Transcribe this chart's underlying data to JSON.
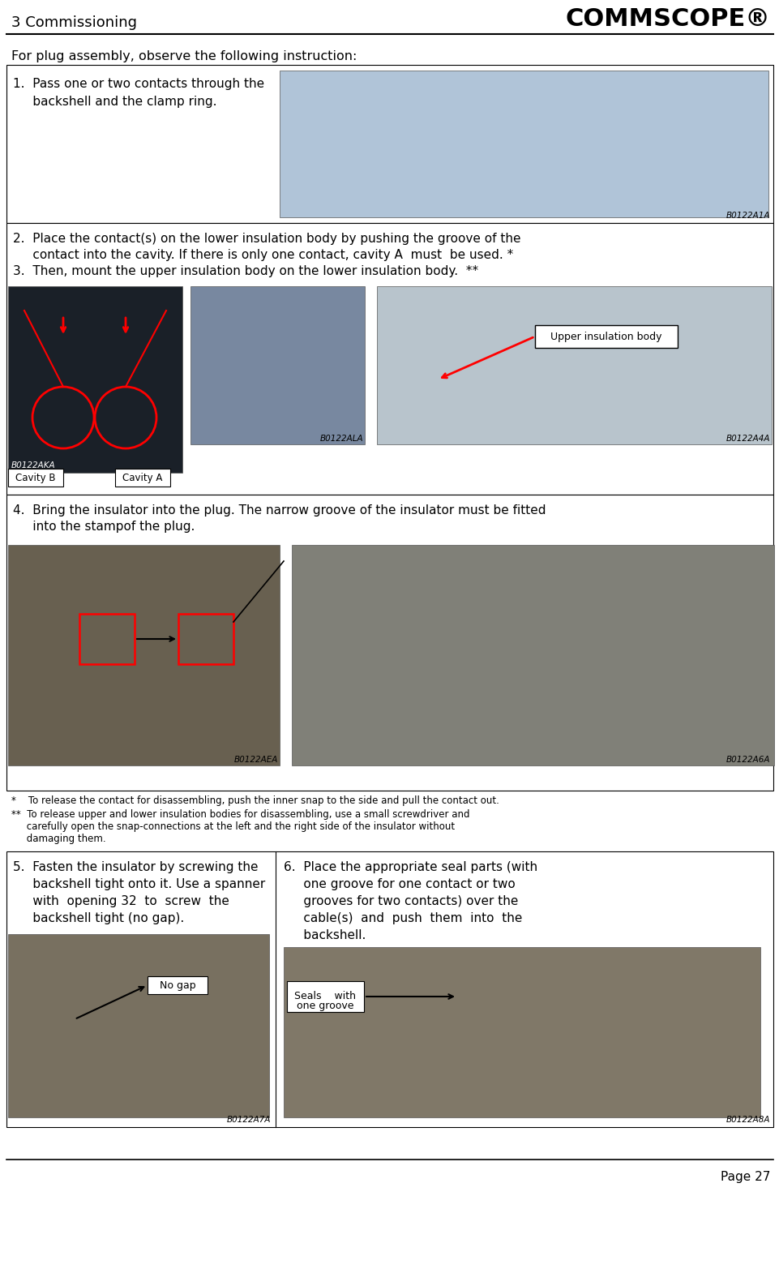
{
  "page_title": "3 Commissioning",
  "company_logo": "COMMSCOPE®",
  "page_number": "Page 27",
  "intro_text": "For plug assembly, observe the following instruction:",
  "background_color": "#ffffff",
  "step1_line1": "1.  Pass one or two contacts through the",
  "step1_line2": "     backshell and the clamp ring.",
  "step2_line1": "2.  Place the contact(s) on the lower insulation body by pushing the groove of the",
  "step2_line2": "     contact into the cavity. If there is only one contact, cavity A  must  be used. *",
  "step3_line1": "3.  Then, mount the upper insulation body on the lower insulation body.  **",
  "step4_line1": "4.  Bring the insulator into the plug. The narrow groove of the insulator must be fitted",
  "step4_line2": "     into the stamp​of the plug.",
  "footnote1": "*    To release the contact for disassembling, push the inner snap to the side and pull the contact out.",
  "footnote2_l1": "**  To release upper and lower insulation bodies for disassembling, use a small screwdriver and",
  "footnote2_l2": "     carefully open the snap-connections at the left and the right side of the insulator without",
  "footnote2_l3": "     damaging them.",
  "step5_line1": "5.  Fasten the insulator by screwing the",
  "step5_line2": "     backshell tight onto it. Use a spanner",
  "step5_line3": "     with  opening 32  to  screw  the",
  "step5_line4": "     backshell tight (no gap).",
  "step6_line1": "6.  Place the appropriate seal parts (with",
  "step6_line2": "     one groove for one contact or two",
  "step6_line3": "     grooves for two contacts) over the",
  "step6_line4": "     cable(s)  and  push  them  into  the",
  "step6_line5": "     backshell.",
  "label_cavity_b": "Cavity B",
  "label_cavity_a": "Cavity A",
  "label_upper_insulation": "Upper insulation body",
  "label_no_gap": "No gap",
  "label_seals_l1": "Seals    with",
  "label_seals_l2": "one groove",
  "img_code_1": "B0122A1A",
  "img_code_2aka": "B0122AKA",
  "img_code_2ala": "B0122ALA",
  "img_code_2a4a": "B0122A4A",
  "img_code_4aea": "B0122AEA",
  "img_code_4a6a": "B0122A6A",
  "img_code_5a7a": "B0122A7A",
  "img_code_6a8a": "B0122A8A",
  "img_color_1": "#b0c4d8",
  "img_color_2left": "#1a2028",
  "img_color_2mid": "#7888a0",
  "img_color_2right": "#b8c4cc",
  "img_color_4left": "#686050",
  "img_color_4right": "#808078",
  "img_color_5": "#787060",
  "img_color_6": "#807868"
}
